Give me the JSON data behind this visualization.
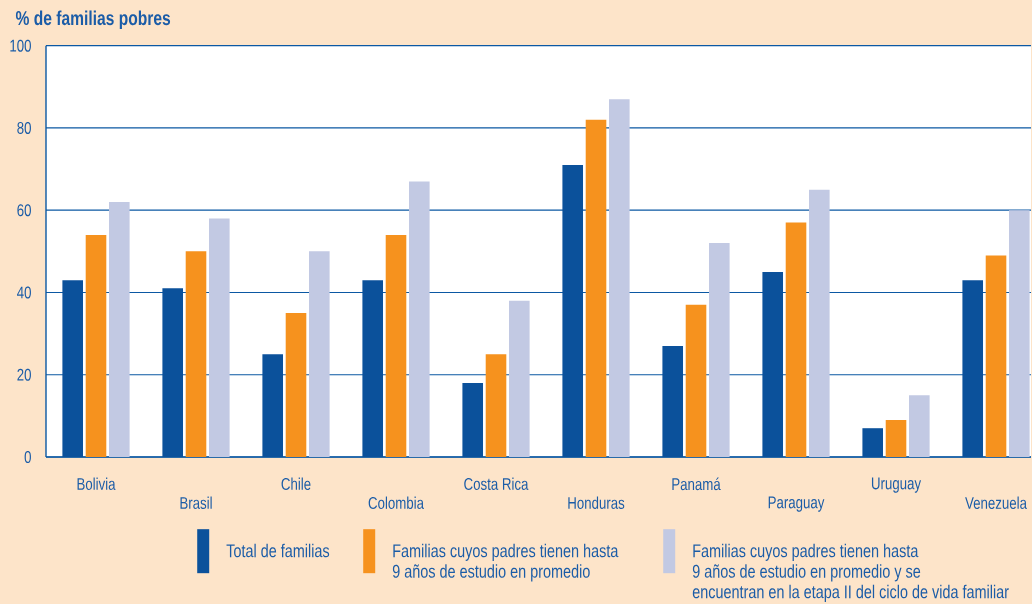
{
  "chart_data": {
    "type": "bar",
    "ylabel": "% de familias pobres",
    "categories": [
      "Bolivia",
      "Brasil",
      "Chile",
      "Colombia",
      "Costa Rica",
      "Honduras",
      "Panamá",
      "Paraguay",
      "Uruguay",
      "Venezuela"
    ],
    "series": [
      {
        "name": "Total de familias",
        "color": "#0b519b",
        "values": [
          43,
          41,
          25,
          43,
          18,
          71,
          27,
          45,
          7,
          43
        ]
      },
      {
        "name": "Familias cuyos padres tienen hasta 9 años de estudio en promedio",
        "color": "#f6921e",
        "values": [
          54,
          50,
          35,
          54,
          25,
          82,
          37,
          57,
          9,
          49
        ]
      },
      {
        "name": "Familias cuyos padres tienen hasta 9 años de estudio en promedio y se encuentran en la etapa II del ciclo de vida familiar",
        "color": "#c2c9e3",
        "values": [
          62,
          58,
          50,
          67,
          38,
          87,
          52,
          65,
          15,
          60
        ]
      }
    ],
    "ylim": [
      0,
      100
    ],
    "yticks": [
      0,
      20,
      40,
      60,
      80,
      100
    ],
    "grid": "y",
    "legend": "bottom"
  }
}
